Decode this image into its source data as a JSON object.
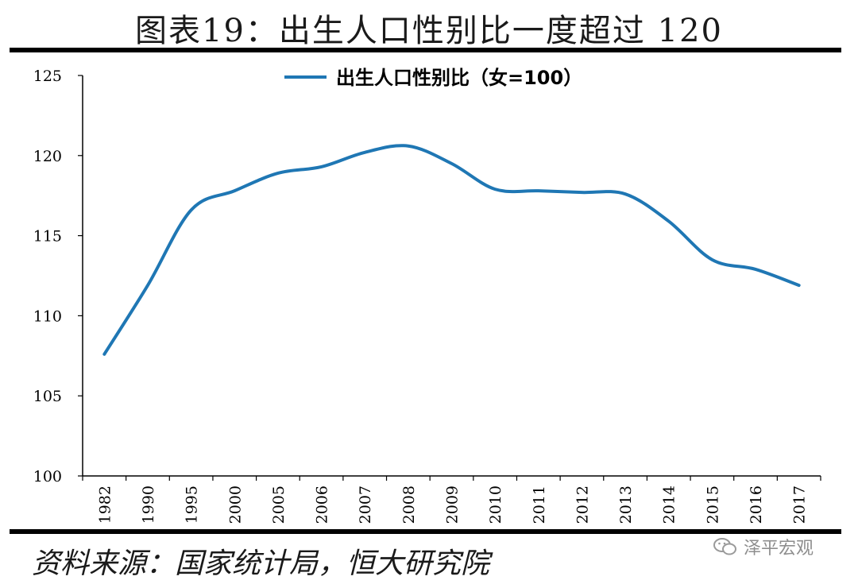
{
  "title": "图表19：出生人口性别比一度超过 120",
  "footer": "资料来源：国家统计局，恒大研究院",
  "watermark": "泽平宏观",
  "colors": {
    "line": "#1f77b4",
    "axis": "#000000",
    "text": "#000000"
  },
  "chart_data": {
    "type": "line",
    "categories": [
      "1982",
      "1990",
      "1995",
      "2000",
      "2005",
      "2006",
      "2007",
      "2008",
      "2009",
      "2010",
      "2011",
      "2012",
      "2013",
      "2014",
      "2015",
      "2016",
      "2017"
    ],
    "series": [
      {
        "name": "出生人口性别比（女=100）",
        "values": [
          107.6,
          111.9,
          116.6,
          117.8,
          118.9,
          119.3,
          120.2,
          120.6,
          119.5,
          117.9,
          117.8,
          117.7,
          117.6,
          115.9,
          113.5,
          112.9,
          111.9
        ]
      }
    ],
    "ylim": [
      100,
      125
    ],
    "yticks": [
      "100",
      "105",
      "110",
      "115",
      "120",
      "125"
    ],
    "grid": false,
    "legend": "top-center"
  }
}
